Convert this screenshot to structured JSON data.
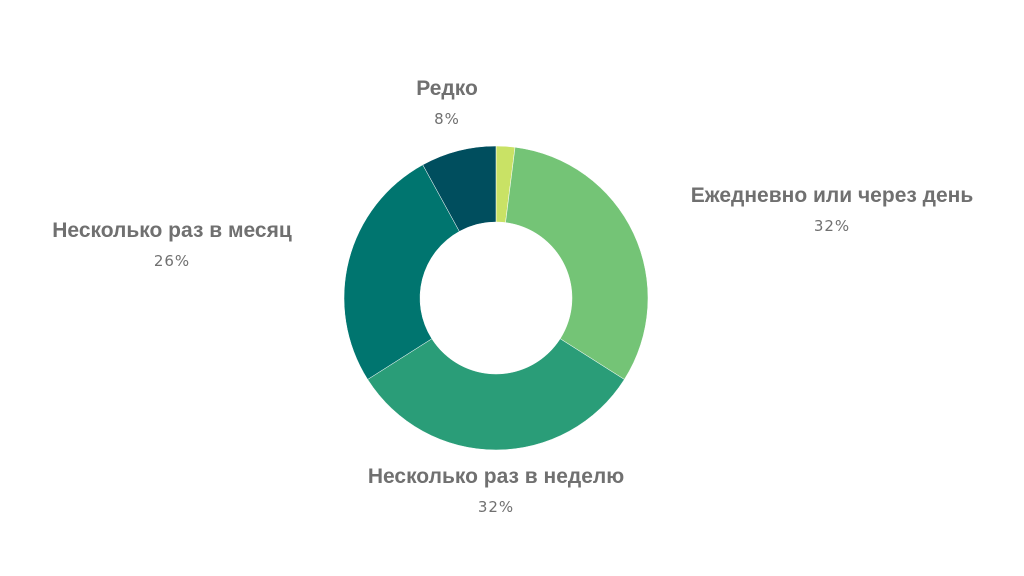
{
  "chart_data": {
    "type": "pie",
    "style": "donut",
    "title": "",
    "categories": [
      "Ежедневно или через день",
      "Несколько раз в неделю",
      "Несколько раз в месяц",
      "Редко"
    ],
    "values": [
      32,
      32,
      26,
      8
    ],
    "value_labels": [
      "32%",
      "32%",
      "26%",
      "8%"
    ],
    "unlabeled_slices": [
      {
        "value": 2,
        "color": "#c9e265"
      }
    ],
    "colors": [
      "#74c476",
      "#2a9d78",
      "#00756f",
      "#004e5e"
    ],
    "start_angle_deg": 0,
    "direction": "clockwise",
    "legend": "none"
  }
}
